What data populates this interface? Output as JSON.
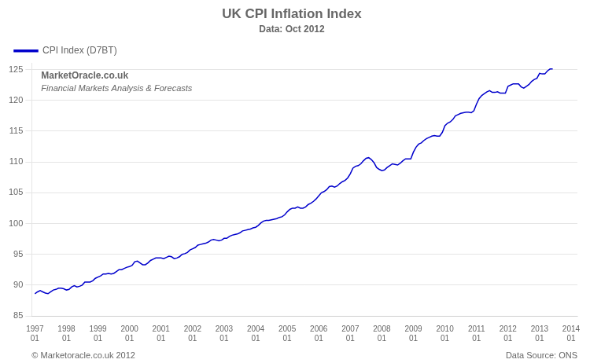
{
  "chart_data": {
    "type": "line",
    "title": "UK CPI Inflation Index",
    "subtitle": "Data: Oct 2012",
    "annotations": [
      "MarketOracle.co.uk",
      "Financial Markets Analysis & Forecasts"
    ],
    "footer": [
      "© Marketoracle.co.uk 2012",
      "Data Source: ONS"
    ],
    "legend": "upper left",
    "grid": "y",
    "xlim": [
      1996.9,
      2014.2
    ],
    "xticks": [
      {
        "value": 1997,
        "label": "1997\n01"
      },
      {
        "value": 1998,
        "label": "1998\n01"
      },
      {
        "value": 1999,
        "label": "1999\n01"
      },
      {
        "value": 2000,
        "label": "2000\n01"
      },
      {
        "value": 2001,
        "label": "2001\n01"
      },
      {
        "value": 2002,
        "label": "2002\n01"
      },
      {
        "value": 2003,
        "label": "2003\n01"
      },
      {
        "value": 2004,
        "label": "2004\n01"
      },
      {
        "value": 2005,
        "label": "2005\n01"
      },
      {
        "value": 2006,
        "label": "2006\n01"
      },
      {
        "value": 2007,
        "label": "2007\n01"
      },
      {
        "value": 2008,
        "label": "2008\n01"
      },
      {
        "value": 2009,
        "label": "2009\n01"
      },
      {
        "value": 2010,
        "label": "2010\n01"
      },
      {
        "value": 2011,
        "label": "2011\n01"
      },
      {
        "value": 2012,
        "label": "2012\n01"
      },
      {
        "value": 2013,
        "label": "2013\n01"
      },
      {
        "value": 2014,
        "label": "2014\n01"
      }
    ],
    "ylim": [
      85,
      126
    ],
    "yticks": [
      85,
      90,
      95,
      100,
      105,
      110,
      115,
      120,
      125
    ],
    "x": [
      1997,
      1997.0833333333333,
      1997.1666666666667,
      1997.25,
      1997.3333333333333,
      1997.4166666666667,
      1997.5,
      1997.5833333333333,
      1997.6666666666667,
      1997.75,
      1997.8333333333333,
      1997.9166666666667,
      1998,
      1998.0833333333333,
      1998.1666666666667,
      1998.25,
      1998.3333333333333,
      1998.4166666666667,
      1998.5,
      1998.5833333333333,
      1998.6666666666667,
      1998.75,
      1998.8333333333333,
      1998.9166666666667,
      1999,
      1999.0833333333333,
      1999.1666666666667,
      1999.25,
      1999.3333333333333,
      1999.4166666666667,
      1999.5,
      1999.5833333333333,
      1999.6666666666667,
      1999.75,
      1999.8333333333333,
      1999.9166666666667,
      2000,
      2000.0833333333333,
      2000.1666666666667,
      2000.25,
      2000.3333333333333,
      2000.4166666666667,
      2000.5,
      2000.5833333333333,
      2000.6666666666667,
      2000.75,
      2000.8333333333333,
      2000.9166666666667,
      2001,
      2001.0833333333333,
      2001.1666666666667,
      2001.25,
      2001.3333333333333,
      2001.4166666666667,
      2001.5,
      2001.5833333333333,
      2001.6666666666667,
      2001.75,
      2001.8333333333333,
      2001.9166666666667,
      2002,
      2002.0833333333333,
      2002.1666666666667,
      2002.25,
      2002.3333333333333,
      2002.4166666666667,
      2002.5,
      2002.5833333333333,
      2002.6666666666667,
      2002.75,
      2002.8333333333333,
      2002.9166666666667,
      2003,
      2003.0833333333333,
      2003.1666666666667,
      2003.25,
      2003.3333333333333,
      2003.4166666666667,
      2003.5,
      2003.5833333333333,
      2003.6666666666667,
      2003.75,
      2003.8333333333333,
      2003.9166666666667,
      2004,
      2004.0833333333333,
      2004.1666666666667,
      2004.25,
      2004.3333333333333,
      2004.4166666666667,
      2004.5,
      2004.5833333333333,
      2004.6666666666667,
      2004.75,
      2004.8333333333333,
      2004.9166666666667,
      2005,
      2005.0833333333333,
      2005.1666666666667,
      2005.25,
      2005.3333333333333,
      2005.4166666666667,
      2005.5,
      2005.5833333333333,
      2005.6666666666667,
      2005.75,
      2005.8333333333333,
      2005.9166666666667,
      2006,
      2006.0833333333333,
      2006.1666666666667,
      2006.25,
      2006.3333333333333,
      2006.4166666666667,
      2006.5,
      2006.5833333333333,
      2006.6666666666667,
      2006.75,
      2006.8333333333333,
      2006.9166666666667,
      2007,
      2007.0833333333333,
      2007.1666666666667,
      2007.25,
      2007.3333333333333,
      2007.4166666666667,
      2007.5,
      2007.5833333333333,
      2007.6666666666667,
      2007.75,
      2007.8333333333333,
      2007.9166666666667,
      2008,
      2008.0833333333333,
      2008.1666666666667,
      2008.25,
      2008.3333333333333,
      2008.4166666666667,
      2008.5,
      2008.5833333333333,
      2008.6666666666667,
      2008.75,
      2008.8333333333333,
      2008.9166666666667,
      2009,
      2009.0833333333333,
      2009.1666666666667,
      2009.25,
      2009.3333333333333,
      2009.4166666666667,
      2009.5,
      2009.5833333333333,
      2009.6666666666667,
      2009.75,
      2009.8333333333333,
      2009.9166666666667,
      2010,
      2010.0833333333333,
      2010.1666666666667,
      2010.25,
      2010.3333333333333,
      2010.4166666666667,
      2010.5,
      2010.5833333333333,
      2010.6666666666667,
      2010.75,
      2010.8333333333333,
      2010.9166666666667,
      2011,
      2011.0833333333333,
      2011.1666666666667,
      2011.25,
      2011.3333333333333,
      2011.4166666666667,
      2011.5,
      2011.5833333333333,
      2011.6666666666667,
      2011.75,
      2011.8333333333333,
      2011.9166666666667,
      2012,
      2012.0833333333333,
      2012.1666666666667,
      2012.25,
      2012.3333333333333,
      2012.4166666666667,
      2012.5,
      2012.5833333333333,
      2012.6666666666667,
      2012.75,
      2012.8333333333333,
      2012.9166666666667,
      2013,
      2013.0833333333333,
      2013.1666666666667,
      2013.25,
      2013.3333333333333,
      2013.4166666666667
    ],
    "series": [
      {
        "name": "CPI Index (D7BT)",
        "color": "#0000cc",
        "values": [
          88.6,
          88.9,
          89.1,
          88.9,
          88.7,
          88.6,
          88.9,
          89.2,
          89.3,
          89.5,
          89.5,
          89.4,
          89.2,
          89.3,
          89.7,
          89.9,
          89.7,
          89.8,
          90.0,
          90.5,
          90.5,
          90.5,
          90.7,
          91.1,
          91.3,
          91.5,
          91.8,
          91.8,
          91.9,
          91.8,
          91.9,
          92.2,
          92.5,
          92.5,
          92.7,
          92.9,
          93.0,
          93.2,
          93.8,
          93.9,
          93.6,
          93.3,
          93.3,
          93.6,
          94.0,
          94.2,
          94.4,
          94.4,
          94.4,
          94.3,
          94.5,
          94.7,
          94.6,
          94.3,
          94.4,
          94.6,
          95.0,
          95.1,
          95.3,
          95.7,
          95.9,
          96.1,
          96.5,
          96.6,
          96.7,
          96.8,
          97.0,
          97.3,
          97.4,
          97.3,
          97.2,
          97.3,
          97.6,
          97.6,
          97.9,
          98.1,
          98.2,
          98.3,
          98.5,
          98.8,
          98.9,
          99.0,
          99.1,
          99.3,
          99.4,
          99.7,
          100.1,
          100.4,
          100.5,
          100.5,
          100.6,
          100.7,
          100.8,
          101.0,
          101.1,
          101.4,
          101.9,
          102.3,
          102.5,
          102.5,
          102.7,
          102.5,
          102.5,
          102.7,
          103.1,
          103.3,
          103.6,
          104.0,
          104.5,
          105.0,
          105.2,
          105.5,
          106.0,
          106.1,
          105.9,
          106.1,
          106.5,
          106.8,
          107.0,
          107.4,
          108.1,
          109.0,
          109.3,
          109.4,
          109.7,
          110.2,
          110.6,
          110.7,
          110.4,
          109.9,
          109.1,
          108.8,
          108.6,
          108.7,
          109.1,
          109.4,
          109.7,
          109.6,
          109.5,
          109.8,
          110.2,
          110.5,
          110.5,
          110.5,
          111.6,
          112.4,
          112.9,
          113.1,
          113.5,
          113.8,
          114.0,
          114.2,
          114.3,
          114.2,
          114.2,
          114.8,
          115.9,
          116.3,
          116.5,
          116.9,
          117.5,
          117.7,
          117.9,
          118.0,
          118.1,
          118.1,
          118.0,
          118.3,
          119.4,
          120.3,
          120.8,
          121.1,
          121.4,
          121.6,
          121.3,
          121.3,
          121.4,
          121.2,
          121.2,
          121.2,
          122.3,
          122.5,
          122.7,
          122.7,
          122.7,
          122.2,
          122.0,
          122.3,
          122.6,
          123.1,
          123.4,
          123.6,
          124.4,
          124.3,
          124.3,
          124.8,
          125.1,
          125.1
        ]
      }
    ]
  }
}
